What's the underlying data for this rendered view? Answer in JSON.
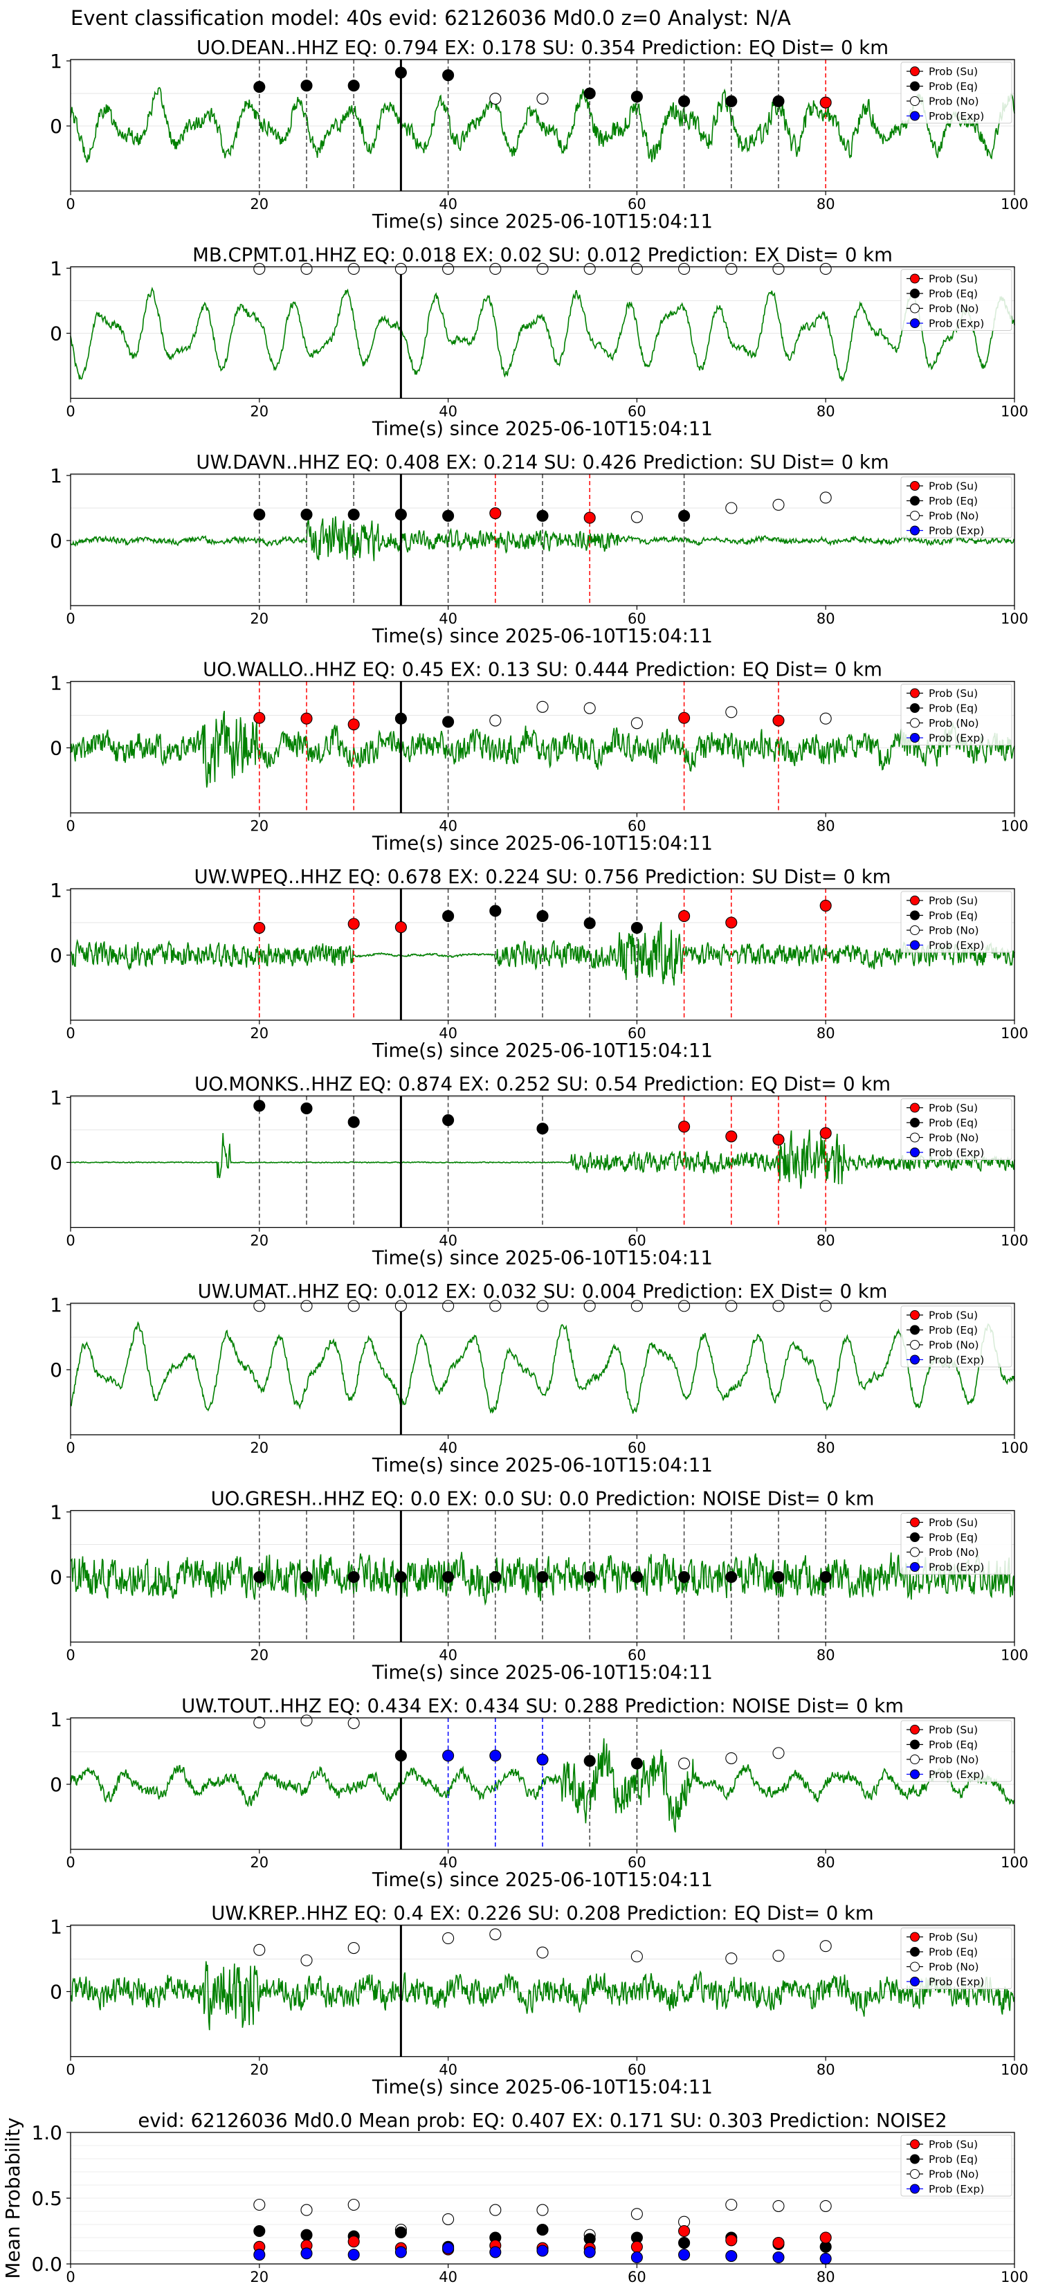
{
  "suptitle": "Event classification model: 40s evid: 62126036 Md0.0 z=0 Analyst: N/A",
  "common": {
    "xlabel": "Time(s) since 2025-06-10T15:04:11",
    "xlim": [
      0,
      100
    ],
    "xticks": [
      "0",
      "20",
      "40",
      "60",
      "80",
      "100"
    ],
    "yticks": [
      "1",
      "0"
    ],
    "legend_position": "upper-right",
    "legend": [
      "Prob (Su)",
      "Prob (Eq)",
      "Prob (No)",
      "Prob (Exp)"
    ],
    "reference_time_s": 35
  },
  "colors": {
    "waveform": "#008000",
    "su": "#ff0000",
    "eq": "#000000",
    "no": "#ffffff",
    "exp": "#0000ff"
  },
  "chart_data": [
    {
      "type": "line",
      "title": "UO.DEAN..HHZ   EQ: 0.794  EX: 0.178  SU: 0.354   Prediction: EQ    Dist= 0 km",
      "waveform_style": "mixed-mid",
      "points": [
        {
          "x": 20,
          "y": 0.6,
          "cls": "eq",
          "line": "eq"
        },
        {
          "x": 25,
          "y": 0.62,
          "cls": "eq",
          "line": "eq"
        },
        {
          "x": 30,
          "y": 0.62,
          "cls": "eq",
          "line": "eq"
        },
        {
          "x": 35,
          "y": 0.82,
          "cls": "eq",
          "line": "eq"
        },
        {
          "x": 40,
          "y": 0.78,
          "cls": "eq",
          "line": "eq"
        },
        {
          "x": 45,
          "y": 0.42,
          "cls": "no",
          "line": null
        },
        {
          "x": 50,
          "y": 0.42,
          "cls": "no",
          "line": null
        },
        {
          "x": 55,
          "y": 0.5,
          "cls": "eq",
          "line": "eq"
        },
        {
          "x": 60,
          "y": 0.45,
          "cls": "eq",
          "line": "eq"
        },
        {
          "x": 65,
          "y": 0.38,
          "cls": "eq",
          "line": "eq"
        },
        {
          "x": 70,
          "y": 0.38,
          "cls": "eq",
          "line": "eq"
        },
        {
          "x": 75,
          "y": 0.38,
          "cls": "eq",
          "line": "eq"
        },
        {
          "x": 80,
          "y": 0.36,
          "cls": "su",
          "line": "su"
        }
      ]
    },
    {
      "type": "line",
      "title": "MB.CPMT.01.HHZ   EQ: 0.018  EX: 0.02  SU: 0.012   Prediction: EX    Dist= 0 km",
      "waveform_style": "long-period",
      "points": [
        {
          "x": 20,
          "y": 0.99,
          "cls": "no",
          "line": null
        },
        {
          "x": 25,
          "y": 0.99,
          "cls": "no",
          "line": null
        },
        {
          "x": 30,
          "y": 0.99,
          "cls": "no",
          "line": null
        },
        {
          "x": 35,
          "y": 0.99,
          "cls": "no",
          "line": null
        },
        {
          "x": 40,
          "y": 0.99,
          "cls": "no",
          "line": null
        },
        {
          "x": 45,
          "y": 0.99,
          "cls": "no",
          "line": null
        },
        {
          "x": 50,
          "y": 0.99,
          "cls": "no",
          "line": null
        },
        {
          "x": 55,
          "y": 0.99,
          "cls": "no",
          "line": null
        },
        {
          "x": 60,
          "y": 0.99,
          "cls": "no",
          "line": null
        },
        {
          "x": 65,
          "y": 0.99,
          "cls": "no",
          "line": null
        },
        {
          "x": 70,
          "y": 0.99,
          "cls": "no",
          "line": null
        },
        {
          "x": 75,
          "y": 0.99,
          "cls": "no",
          "line": null
        },
        {
          "x": 80,
          "y": 0.99,
          "cls": "no",
          "line": null
        }
      ]
    },
    {
      "type": "line",
      "title": "UW.DAVN..HHZ   EQ: 0.408  EX: 0.214  SU: 0.426   Prediction: SU    Dist= 0 km",
      "waveform_style": "low-noise-burst",
      "points": [
        {
          "x": 20,
          "y": 0.4,
          "cls": "eq",
          "line": "eq"
        },
        {
          "x": 25,
          "y": 0.4,
          "cls": "eq",
          "line": "eq"
        },
        {
          "x": 30,
          "y": 0.4,
          "cls": "eq",
          "line": "eq"
        },
        {
          "x": 35,
          "y": 0.4,
          "cls": "eq",
          "line": "eq"
        },
        {
          "x": 40,
          "y": 0.38,
          "cls": "eq",
          "line": "eq"
        },
        {
          "x": 45,
          "y": 0.42,
          "cls": "su",
          "line": "su"
        },
        {
          "x": 50,
          "y": 0.38,
          "cls": "eq",
          "line": "eq"
        },
        {
          "x": 55,
          "y": 0.35,
          "cls": "su",
          "line": "su"
        },
        {
          "x": 60,
          "y": 0.36,
          "cls": "no",
          "line": null
        },
        {
          "x": 65,
          "y": 0.38,
          "cls": "eq",
          "line": "eq"
        },
        {
          "x": 70,
          "y": 0.5,
          "cls": "no",
          "line": null
        },
        {
          "x": 75,
          "y": 0.55,
          "cls": "no",
          "line": null
        },
        {
          "x": 80,
          "y": 0.66,
          "cls": "no",
          "line": null
        }
      ]
    },
    {
      "type": "line",
      "title": "UO.WALLO..HHZ   EQ: 0.45  EX: 0.13  SU: 0.444   Prediction: EQ    Dist= 0 km",
      "waveform_style": "noisy-mid",
      "points": [
        {
          "x": 20,
          "y": 0.46,
          "cls": "su",
          "line": "su"
        },
        {
          "x": 25,
          "y": 0.45,
          "cls": "su",
          "line": "su"
        },
        {
          "x": 30,
          "y": 0.36,
          "cls": "su",
          "line": "su"
        },
        {
          "x": 35,
          "y": 0.45,
          "cls": "eq",
          "line": "eq"
        },
        {
          "x": 40,
          "y": 0.4,
          "cls": "eq",
          "line": "eq"
        },
        {
          "x": 45,
          "y": 0.42,
          "cls": "no",
          "line": null
        },
        {
          "x": 50,
          "y": 0.63,
          "cls": "no",
          "line": null
        },
        {
          "x": 55,
          "y": 0.61,
          "cls": "no",
          "line": null
        },
        {
          "x": 60,
          "y": 0.38,
          "cls": "no",
          "line": null
        },
        {
          "x": 65,
          "y": 0.46,
          "cls": "su",
          "line": "su"
        },
        {
          "x": 70,
          "y": 0.55,
          "cls": "no",
          "line": null
        },
        {
          "x": 75,
          "y": 0.42,
          "cls": "su",
          "line": "su"
        },
        {
          "x": 80,
          "y": 0.45,
          "cls": "no",
          "line": null
        }
      ]
    },
    {
      "type": "line",
      "title": "UW.WPEQ..HHZ   EQ: 0.678  EX: 0.224  SU: 0.756   Prediction: SU    Dist= 0 km",
      "waveform_style": "tremor-quiet",
      "points": [
        {
          "x": 20,
          "y": 0.42,
          "cls": "su",
          "line": "su"
        },
        {
          "x": 30,
          "y": 0.48,
          "cls": "su",
          "line": "su"
        },
        {
          "x": 35,
          "y": 0.43,
          "cls": "su",
          "line": "su"
        },
        {
          "x": 40,
          "y": 0.6,
          "cls": "eq",
          "line": "eq"
        },
        {
          "x": 45,
          "y": 0.68,
          "cls": "eq",
          "line": "eq"
        },
        {
          "x": 50,
          "y": 0.6,
          "cls": "eq",
          "line": "eq"
        },
        {
          "x": 55,
          "y": 0.49,
          "cls": "eq",
          "line": "eq"
        },
        {
          "x": 60,
          "y": 0.42,
          "cls": "eq",
          "line": "eq"
        },
        {
          "x": 65,
          "y": 0.6,
          "cls": "su",
          "line": "su"
        },
        {
          "x": 70,
          "y": 0.5,
          "cls": "su",
          "line": "su"
        },
        {
          "x": 80,
          "y": 0.76,
          "cls": "su",
          "line": "su"
        }
      ]
    },
    {
      "type": "line",
      "title": "UO.MONKS..HHZ   EQ: 0.874  EX: 0.252  SU: 0.54   Prediction: EQ    Dist= 0 km",
      "waveform_style": "quiet-late",
      "points": [
        {
          "x": 20,
          "y": 0.87,
          "cls": "eq",
          "line": "eq"
        },
        {
          "x": 25,
          "y": 0.83,
          "cls": "eq",
          "line": "eq"
        },
        {
          "x": 30,
          "y": 0.62,
          "cls": "eq",
          "line": "eq"
        },
        {
          "x": 40,
          "y": 0.65,
          "cls": "eq",
          "line": "eq"
        },
        {
          "x": 50,
          "y": 0.52,
          "cls": "eq",
          "line": "eq"
        },
        {
          "x": 65,
          "y": 0.55,
          "cls": "su",
          "line": "su"
        },
        {
          "x": 70,
          "y": 0.4,
          "cls": "su",
          "line": "su"
        },
        {
          "x": 75,
          "y": 0.35,
          "cls": "su",
          "line": "su"
        },
        {
          "x": 80,
          "y": 0.45,
          "cls": "su",
          "line": "su"
        }
      ]
    },
    {
      "type": "line",
      "title": "UW.UMAT..HHZ   EQ: 0.012  EX: 0.032  SU: 0.004   Prediction: EX    Dist= 0 km",
      "waveform_style": "long-period",
      "points": [
        {
          "x": 20,
          "y": 0.98,
          "cls": "no",
          "line": null
        },
        {
          "x": 25,
          "y": 0.98,
          "cls": "no",
          "line": null
        },
        {
          "x": 30,
          "y": 0.98,
          "cls": "no",
          "line": null
        },
        {
          "x": 35,
          "y": 0.98,
          "cls": "no",
          "line": null
        },
        {
          "x": 40,
          "y": 0.98,
          "cls": "no",
          "line": null
        },
        {
          "x": 45,
          "y": 0.98,
          "cls": "no",
          "line": null
        },
        {
          "x": 50,
          "y": 0.98,
          "cls": "no",
          "line": null
        },
        {
          "x": 55,
          "y": 0.98,
          "cls": "no",
          "line": null
        },
        {
          "x": 60,
          "y": 0.98,
          "cls": "no",
          "line": null
        },
        {
          "x": 65,
          "y": 0.98,
          "cls": "no",
          "line": null
        },
        {
          "x": 70,
          "y": 0.98,
          "cls": "no",
          "line": null
        },
        {
          "x": 75,
          "y": 0.98,
          "cls": "no",
          "line": null
        },
        {
          "x": 80,
          "y": 0.98,
          "cls": "no",
          "line": null
        }
      ]
    },
    {
      "type": "line",
      "title": "UO.GRESH..HHZ   EQ: 0.0  EX: 0.0  SU: 0.0   Prediction: NOISE    Dist= 0 km",
      "waveform_style": "noisy-full",
      "points": [
        {
          "x": 20,
          "y": 0.0,
          "cls": "eq",
          "line": "eq"
        },
        {
          "x": 25,
          "y": 0.0,
          "cls": "eq",
          "line": "eq"
        },
        {
          "x": 30,
          "y": 0.0,
          "cls": "eq",
          "line": "eq"
        },
        {
          "x": 35,
          "y": 0.0,
          "cls": "eq",
          "line": "eq"
        },
        {
          "x": 40,
          "y": 0.0,
          "cls": "eq",
          "line": "eq"
        },
        {
          "x": 45,
          "y": 0.0,
          "cls": "eq",
          "line": "eq"
        },
        {
          "x": 50,
          "y": 0.0,
          "cls": "eq",
          "line": "eq"
        },
        {
          "x": 55,
          "y": 0.0,
          "cls": "eq",
          "line": "eq"
        },
        {
          "x": 60,
          "y": 0.0,
          "cls": "eq",
          "line": "eq"
        },
        {
          "x": 65,
          "y": 0.0,
          "cls": "eq",
          "line": "eq"
        },
        {
          "x": 70,
          "y": 0.0,
          "cls": "eq",
          "line": "eq"
        },
        {
          "x": 75,
          "y": 0.0,
          "cls": "eq",
          "line": "eq"
        },
        {
          "x": 80,
          "y": 0.0,
          "cls": "eq",
          "line": "eq"
        }
      ]
    },
    {
      "type": "line",
      "title": "UW.TOUT..HHZ   EQ: 0.434  EX: 0.434  SU: 0.288   Prediction: NOISE    Dist= 0 km",
      "waveform_style": "event-mid",
      "points": [
        {
          "x": 20,
          "y": 0.95,
          "cls": "no",
          "line": null
        },
        {
          "x": 25,
          "y": 0.98,
          "cls": "no",
          "line": null
        },
        {
          "x": 30,
          "y": 0.94,
          "cls": "no",
          "line": null
        },
        {
          "x": 35,
          "y": 0.44,
          "cls": "eq",
          "line": null
        },
        {
          "x": 40,
          "y": 0.44,
          "cls": "exp",
          "line": "exp"
        },
        {
          "x": 45,
          "y": 0.44,
          "cls": "exp",
          "line": "exp"
        },
        {
          "x": 50,
          "y": 0.38,
          "cls": "exp",
          "line": "exp"
        },
        {
          "x": 55,
          "y": 0.36,
          "cls": "eq",
          "line": "eq"
        },
        {
          "x": 60,
          "y": 0.32,
          "cls": "eq",
          "line": "eq"
        },
        {
          "x": 65,
          "y": 0.32,
          "cls": "no",
          "line": null
        },
        {
          "x": 70,
          "y": 0.4,
          "cls": "no",
          "line": null
        },
        {
          "x": 75,
          "y": 0.48,
          "cls": "no",
          "line": null
        }
      ]
    },
    {
      "type": "line",
      "title": "UW.KREP..HHZ   EQ: 0.4  EX: 0.226  SU: 0.208   Prediction: EQ    Dist= 0 km",
      "waveform_style": "noisy-mid",
      "points": [
        {
          "x": 20,
          "y": 0.64,
          "cls": "no",
          "line": null
        },
        {
          "x": 25,
          "y": 0.48,
          "cls": "no",
          "line": null
        },
        {
          "x": 30,
          "y": 0.67,
          "cls": "no",
          "line": null
        },
        {
          "x": 40,
          "y": 0.82,
          "cls": "no",
          "line": null
        },
        {
          "x": 45,
          "y": 0.88,
          "cls": "no",
          "line": null
        },
        {
          "x": 50,
          "y": 0.6,
          "cls": "no",
          "line": null
        },
        {
          "x": 60,
          "y": 0.54,
          "cls": "no",
          "line": null
        },
        {
          "x": 70,
          "y": 0.51,
          "cls": "no",
          "line": null
        },
        {
          "x": 75,
          "y": 0.55,
          "cls": "no",
          "line": null
        },
        {
          "x": 80,
          "y": 0.7,
          "cls": "no",
          "line": null
        }
      ]
    },
    {
      "type": "scatter",
      "title": "evid: 62126036  Md0.0   Mean prob:   EQ: 0.407  EX: 0.171  SU: 0.303   Prediction: NOISE2",
      "ylabel": "Mean Probability",
      "ylim": [
        0,
        1
      ],
      "yticks": [
        "1.0",
        "0.5",
        "0.0"
      ],
      "x": [
        20,
        25,
        30,
        35,
        40,
        45,
        50,
        55,
        60,
        65,
        70,
        75,
        80
      ],
      "series": [
        {
          "name": "Prob (No)",
          "cls": "no",
          "values": [
            0.45,
            0.41,
            0.45,
            0.26,
            0.34,
            0.41,
            0.41,
            0.22,
            0.38,
            0.32,
            0.45,
            0.44,
            0.44
          ]
        },
        {
          "name": "Prob (Eq)",
          "cls": "eq",
          "values": [
            0.25,
            0.22,
            0.21,
            0.24,
            0.13,
            0.2,
            0.26,
            0.19,
            0.2,
            0.16,
            0.2,
            0.15,
            0.13
          ]
        },
        {
          "name": "Prob (Su)",
          "cls": "su",
          "values": [
            0.13,
            0.14,
            0.17,
            0.12,
            0.11,
            0.14,
            0.12,
            0.12,
            0.13,
            0.25,
            0.18,
            0.16,
            0.2
          ]
        },
        {
          "name": "Prob (Exp)",
          "cls": "exp",
          "values": [
            0.07,
            0.08,
            0.07,
            0.09,
            0.12,
            0.09,
            0.1,
            0.09,
            0.05,
            0.07,
            0.06,
            0.05,
            0.04
          ]
        }
      ]
    }
  ]
}
